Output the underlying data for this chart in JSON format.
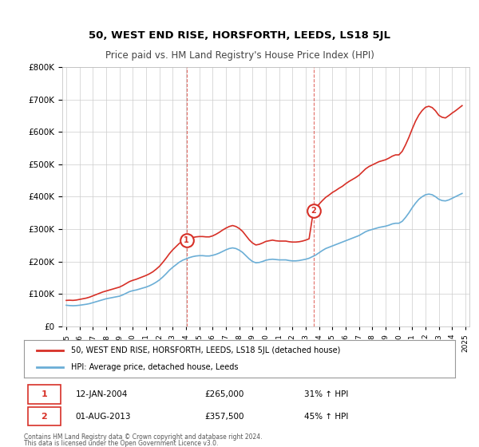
{
  "title": "50, WEST END RISE, HORSFORTH, LEEDS, LS18 5JL",
  "subtitle": "Price paid vs. HM Land Registry's House Price Index (HPI)",
  "ylabel": "",
  "xlabel": "",
  "ylim": [
    0,
    800000
  ],
  "yticks": [
    0,
    100000,
    200000,
    300000,
    400000,
    500000,
    600000,
    700000,
    800000
  ],
  "ytick_labels": [
    "£0",
    "£100K",
    "£200K",
    "£300K",
    "£400K",
    "£500K",
    "£600K",
    "£700K",
    "£800K"
  ],
  "hpi_color": "#6baed6",
  "property_color": "#d73027",
  "marker1_color": "#d73027",
  "marker2_color": "#d73027",
  "sale1_date": 2004.04,
  "sale1_price": 265000,
  "sale1_label": "1",
  "sale1_text": "12-JAN-2004",
  "sale1_pct": "31% ↑ HPI",
  "sale2_date": 2013.58,
  "sale2_price": 357500,
  "sale2_label": "2",
  "sale2_text": "01-AUG-2013",
  "sale2_pct": "45% ↑ HPI",
  "legend_property": "50, WEST END RISE, HORSFORTH, LEEDS, LS18 5JL (detached house)",
  "legend_hpi": "HPI: Average price, detached house, Leeds",
  "footer1": "Contains HM Land Registry data © Crown copyright and database right 2024.",
  "footer2": "This data is licensed under the Open Government Licence v3.0.",
  "background_color": "#ffffff",
  "grid_color": "#cccccc",
  "hpi_data_x": [
    1995.0,
    1995.25,
    1995.5,
    1995.75,
    1996.0,
    1996.25,
    1996.5,
    1996.75,
    1997.0,
    1997.25,
    1997.5,
    1997.75,
    1998.0,
    1998.25,
    1998.5,
    1998.75,
    1999.0,
    1999.25,
    1999.5,
    1999.75,
    2000.0,
    2000.25,
    2000.5,
    2000.75,
    2001.0,
    2001.25,
    2001.5,
    2001.75,
    2002.0,
    2002.25,
    2002.5,
    2002.75,
    2003.0,
    2003.25,
    2003.5,
    2003.75,
    2004.0,
    2004.25,
    2004.5,
    2004.75,
    2005.0,
    2005.25,
    2005.5,
    2005.75,
    2006.0,
    2006.25,
    2006.5,
    2006.75,
    2007.0,
    2007.25,
    2007.5,
    2007.75,
    2008.0,
    2008.25,
    2008.5,
    2008.75,
    2009.0,
    2009.25,
    2009.5,
    2009.75,
    2010.0,
    2010.25,
    2010.5,
    2010.75,
    2011.0,
    2011.25,
    2011.5,
    2011.75,
    2012.0,
    2012.25,
    2012.5,
    2012.75,
    2013.0,
    2013.25,
    2013.5,
    2013.75,
    2014.0,
    2014.25,
    2014.5,
    2014.75,
    2015.0,
    2015.25,
    2015.5,
    2015.75,
    2016.0,
    2016.25,
    2016.5,
    2016.75,
    2017.0,
    2017.25,
    2017.5,
    2017.75,
    2018.0,
    2018.25,
    2018.5,
    2018.75,
    2019.0,
    2019.25,
    2019.5,
    2019.75,
    2020.0,
    2020.25,
    2020.5,
    2020.75,
    2021.0,
    2021.25,
    2021.5,
    2021.75,
    2022.0,
    2022.25,
    2022.5,
    2022.75,
    2023.0,
    2023.25,
    2023.5,
    2023.75,
    2024.0,
    2024.25,
    2024.5,
    2024.75
  ],
  "hpi_data_y": [
    65000,
    64000,
    63500,
    64000,
    65000,
    66500,
    68000,
    70000,
    73000,
    76000,
    79000,
    82000,
    85000,
    87000,
    89000,
    91000,
    93000,
    97000,
    102000,
    107000,
    110000,
    112000,
    115000,
    118000,
    121000,
    125000,
    130000,
    136000,
    143000,
    152000,
    162000,
    173000,
    182000,
    190000,
    198000,
    204000,
    208000,
    212000,
    215000,
    217000,
    218000,
    218000,
    217000,
    217000,
    219000,
    222000,
    226000,
    231000,
    236000,
    240000,
    242000,
    240000,
    235000,
    228000,
    218000,
    208000,
    200000,
    196000,
    197000,
    200000,
    204000,
    206000,
    207000,
    206000,
    205000,
    205000,
    205000,
    203000,
    202000,
    202000,
    203000,
    205000,
    207000,
    210000,
    215000,
    220000,
    227000,
    234000,
    240000,
    244000,
    248000,
    252000,
    256000,
    260000,
    264000,
    268000,
    272000,
    276000,
    280000,
    286000,
    292000,
    296000,
    299000,
    302000,
    305000,
    307000,
    309000,
    312000,
    316000,
    318000,
    318000,
    324000,
    336000,
    350000,
    366000,
    380000,
    392000,
    400000,
    406000,
    408000,
    406000,
    400000,
    392000,
    388000,
    387000,
    390000,
    395000,
    400000,
    405000,
    410000
  ],
  "prop_data_x": [
    1995.0,
    1995.25,
    1995.5,
    1995.75,
    1996.0,
    1996.25,
    1996.5,
    1996.75,
    1997.0,
    1997.25,
    1997.5,
    1997.75,
    1998.0,
    1998.25,
    1998.5,
    1998.75,
    1999.0,
    1999.25,
    1999.5,
    1999.75,
    2000.0,
    2000.25,
    2000.5,
    2000.75,
    2001.0,
    2001.25,
    2001.5,
    2001.75,
    2002.0,
    2002.25,
    2002.5,
    2002.75,
    2003.0,
    2003.25,
    2003.5,
    2003.75,
    2004.04,
    2004.04,
    2004.25,
    2004.5,
    2004.75,
    2005.0,
    2005.25,
    2005.5,
    2005.75,
    2006.0,
    2006.25,
    2006.5,
    2006.75,
    2007.0,
    2007.25,
    2007.5,
    2007.75,
    2008.0,
    2008.25,
    2008.5,
    2008.75,
    2009.0,
    2009.25,
    2009.5,
    2009.75,
    2010.0,
    2010.25,
    2010.5,
    2010.75,
    2011.0,
    2011.25,
    2011.5,
    2011.75,
    2012.0,
    2012.25,
    2012.5,
    2012.75,
    2013.0,
    2013.25,
    2013.58,
    2013.58,
    2013.75,
    2014.0,
    2014.25,
    2014.5,
    2014.75,
    2015.0,
    2015.25,
    2015.5,
    2015.75,
    2016.0,
    2016.25,
    2016.5,
    2016.75,
    2017.0,
    2017.25,
    2017.5,
    2017.75,
    2018.0,
    2018.25,
    2018.5,
    2018.75,
    2019.0,
    2019.25,
    2019.5,
    2019.75,
    2020.0,
    2020.25,
    2020.5,
    2020.75,
    2021.0,
    2021.25,
    2021.5,
    2021.75,
    2022.0,
    2022.25,
    2022.5,
    2022.75,
    2023.0,
    2023.25,
    2023.5,
    2023.75,
    2024.0,
    2024.25,
    2024.5,
    2024.75
  ],
  "prop_data_y": [
    80000,
    80500,
    80000,
    81000,
    83000,
    85000,
    87000,
    90000,
    94000,
    98000,
    102000,
    106000,
    109000,
    112000,
    115000,
    118000,
    121000,
    126000,
    132000,
    138000,
    142000,
    145000,
    149000,
    153000,
    157000,
    162000,
    168000,
    176000,
    185000,
    197000,
    210000,
    224000,
    236000,
    246000,
    256000,
    262000,
    265000,
    265000,
    270000,
    274000,
    276000,
    277000,
    277000,
    276000,
    276000,
    279000,
    284000,
    290000,
    297000,
    303000,
    308000,
    311000,
    308000,
    302000,
    293000,
    280000,
    267000,
    257000,
    251000,
    253000,
    257000,
    262000,
    264000,
    266000,
    264000,
    263000,
    263000,
    263000,
    261000,
    260000,
    260000,
    261000,
    263000,
    266000,
    270000,
    357500,
    357500,
    365000,
    377000,
    388000,
    398000,
    405000,
    413000,
    419000,
    426000,
    432000,
    440000,
    447000,
    453000,
    459000,
    466000,
    476000,
    486000,
    493000,
    498000,
    503000,
    508000,
    511000,
    514000,
    519000,
    525000,
    529000,
    529000,
    540000,
    560000,
    583000,
    609000,
    633000,
    652000,
    666000,
    676000,
    679000,
    675000,
    665000,
    651000,
    645000,
    643000,
    650000,
    658000,
    665000,
    673000,
    681000
  ]
}
